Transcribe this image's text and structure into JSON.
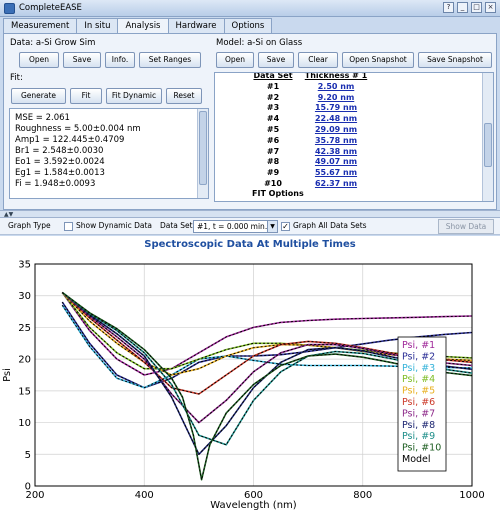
{
  "app": {
    "title": "CompleteEASE",
    "window_buttons": [
      "?",
      "_",
      "□",
      "×"
    ]
  },
  "tabs": [
    {
      "label": "Measurement"
    },
    {
      "label": "In situ"
    },
    {
      "label": "Analysis"
    },
    {
      "label": "Hardware"
    },
    {
      "label": "Options"
    }
  ],
  "data_panel": {
    "title": "Data: a-Si Grow Sim",
    "buttons": {
      "open": "Open",
      "save": "Save",
      "info": "Info.",
      "set_ranges": "Set Ranges"
    }
  },
  "fit_panel": {
    "title": "Fit:",
    "buttons": {
      "generate": "Generate",
      "fit": "Fit",
      "fit_dynamic": "Fit Dynamic",
      "reset": "Reset"
    },
    "results": [
      "MSE = 2.061",
      "Roughness = 5.00±0.004 nm",
      "Amp1 = 122.445±0.4709",
      "Br1 = 2.548±0.0030",
      "Eo1 = 3.592±0.0024",
      "Eg1 = 1.584±0.0013",
      "Fi = 1.948±0.0093"
    ]
  },
  "model_panel": {
    "title": "Model: a-Si on Glass",
    "buttons": {
      "open": "Open",
      "save": "Save",
      "clear": "Clear",
      "open_snapshot": "Open Snapshot",
      "save_snapshot": "Save Snapshot"
    },
    "table": {
      "headers": [
        "Data Set",
        "Thickness # 1"
      ],
      "rows": [
        [
          "#1",
          "2.50 nm"
        ],
        [
          "#2",
          "9.20 nm"
        ],
        [
          "#3",
          "15.79 nm"
        ],
        [
          "#4",
          "22.48 nm"
        ],
        [
          "#5",
          "29.09 nm"
        ],
        [
          "#6",
          "35.78 nm"
        ],
        [
          "#7",
          "42.38 nm"
        ],
        [
          "#8",
          "49.07 nm"
        ],
        [
          "#9",
          "55.67 nm"
        ],
        [
          "#10",
          "62.37 nm"
        ]
      ]
    },
    "fit_options_label": "FIT Options"
  },
  "graph_toolbar": {
    "graph_type": "Graph Type",
    "show_dynamic": "Show Dynamic Data",
    "dataset_label": "Data Set:",
    "dataset_value": "#1, t = 0.000 min.",
    "graph_all": "Graph All Data Sets",
    "show_data": "Show Data"
  },
  "chart_data": {
    "type": "line",
    "title": "Spectroscopic Data At Multiple Times",
    "xlabel": "Wavelength (nm)",
    "ylabel": "Psi",
    "xlim": [
      200,
      1000
    ],
    "ylim": [
      0,
      35
    ],
    "xticks": [
      200,
      400,
      600,
      800,
      1000
    ],
    "yticks": [
      0,
      5,
      10,
      15,
      20,
      25,
      30,
      35
    ],
    "grid": true,
    "legend": "right",
    "series": [
      {
        "name": "Psi, #1",
        "color": "#a0299a",
        "x": [
          250,
          300,
          350,
          400,
          450,
          500,
          550,
          600,
          650,
          700,
          750,
          800,
          850,
          900,
          950,
          1000
        ],
        "y": [
          30.5,
          24.5,
          20.0,
          17.5,
          18.5,
          21.0,
          23.5,
          25.0,
          25.8,
          26.1,
          26.3,
          26.4,
          26.5,
          26.6,
          26.7,
          26.8
        ]
      },
      {
        "name": "Psi, #2",
        "color": "#2b2f96",
        "x": [
          250,
          300,
          350,
          400,
          450,
          500,
          550,
          600,
          650,
          700,
          750,
          800,
          850,
          900,
          950,
          1000
        ],
        "y": [
          29.0,
          22.5,
          17.5,
          15.5,
          17.0,
          19.5,
          20.5,
          20.5,
          20.7,
          21.2,
          21.8,
          22.4,
          23.0,
          23.5,
          23.9,
          24.2
        ]
      },
      {
        "name": "Psi, #3",
        "color": "#38b4da",
        "x": [
          250,
          300,
          350,
          400,
          450,
          500,
          550,
          600,
          650,
          700,
          750,
          800,
          850,
          900,
          950,
          1000
        ],
        "y": [
          28.5,
          22.0,
          17.0,
          15.5,
          17.5,
          20.0,
          20.5,
          19.8,
          19.2,
          19.0,
          19.0,
          19.0,
          18.9,
          18.8,
          18.7,
          18.6
        ]
      },
      {
        "name": "Psi, #4",
        "color": "#7fbd26",
        "x": [
          250,
          300,
          350,
          400,
          450,
          500,
          550,
          600,
          650,
          700,
          750,
          800,
          850,
          900,
          950,
          1000
        ],
        "y": [
          30.5,
          25.0,
          21.0,
          18.5,
          18.5,
          20.0,
          21.5,
          22.5,
          22.5,
          22.2,
          21.8,
          21.4,
          21.0,
          20.7,
          20.4,
          20.2
        ]
      },
      {
        "name": "Psi, #5",
        "color": "#e8b020",
        "x": [
          250,
          300,
          350,
          400,
          450,
          500,
          550,
          600,
          650,
          700,
          750,
          800,
          850,
          900,
          950,
          1000
        ],
        "y": [
          30.5,
          26.0,
          22.5,
          19.5,
          17.5,
          18.5,
          20.5,
          21.8,
          22.3,
          22.2,
          21.8,
          21.2,
          20.7,
          20.3,
          20.0,
          19.8
        ]
      },
      {
        "name": "Psi, #6",
        "color": "#cc3b2b",
        "x": [
          250,
          300,
          350,
          400,
          450,
          500,
          550,
          600,
          650,
          700,
          750,
          800,
          850,
          900,
          950,
          1000
        ],
        "y": [
          30.5,
          26.5,
          23.0,
          19.5,
          15.5,
          14.5,
          17.5,
          20.5,
          22.3,
          22.8,
          22.5,
          21.8,
          21.0,
          20.4,
          19.9,
          19.5
        ]
      },
      {
        "name": "Psi, #7",
        "color": "#8e2a8a",
        "x": [
          250,
          300,
          350,
          400,
          450,
          500,
          550,
          600,
          650,
          700,
          750,
          800,
          850,
          900,
          950,
          1000
        ],
        "y": [
          30.5,
          26.8,
          23.5,
          20.0,
          14.5,
          10.0,
          13.5,
          18.0,
          21.0,
          22.3,
          22.3,
          21.7,
          20.8,
          20.0,
          19.4,
          19.0
        ]
      },
      {
        "name": "Psi, #8",
        "color": "#1f2873",
        "x": [
          250,
          300,
          350,
          400,
          450,
          500,
          550,
          600,
          650,
          700,
          750,
          800,
          850,
          900,
          950,
          1000
        ],
        "y": [
          30.5,
          27.0,
          24.0,
          20.5,
          14.0,
          5.0,
          9.5,
          15.5,
          19.5,
          21.5,
          21.8,
          21.3,
          20.4,
          19.6,
          18.9,
          18.4
        ]
      },
      {
        "name": "Psi, #9",
        "color": "#1f8f8a",
        "x": [
          250,
          300,
          350,
          400,
          450,
          500,
          550,
          600,
          650,
          700,
          750,
          800,
          850,
          900,
          950,
          1000
        ],
        "y": [
          30.5,
          27.2,
          24.5,
          21.0,
          16.0,
          8.0,
          6.5,
          13.5,
          18.0,
          20.5,
          21.2,
          20.9,
          20.1,
          19.2,
          18.4,
          17.8
        ]
      },
      {
        "name": "Psi, #10",
        "color": "#1e5e22",
        "x": [
          250,
          300,
          350,
          400,
          450,
          470,
          490,
          505,
          520,
          550,
          600,
          650,
          700,
          750,
          800,
          850,
          900,
          950,
          1000
        ],
        "y": [
          30.5,
          27.3,
          24.8,
          21.5,
          17.0,
          14.0,
          8.0,
          1.0,
          6.5,
          11.5,
          16.0,
          19.0,
          20.5,
          20.8,
          20.3,
          19.5,
          18.6,
          17.9,
          17.4
        ]
      }
    ],
    "model_legend": "Model"
  }
}
